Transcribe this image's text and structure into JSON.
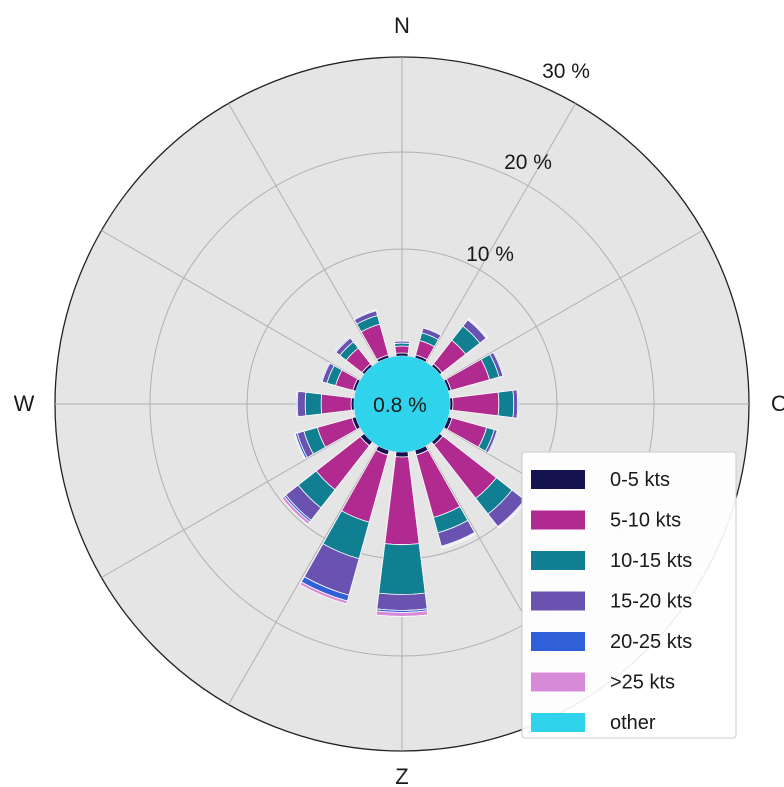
{
  "chart_data": {
    "type": "windrose",
    "direction_labels": [
      "N",
      "O",
      "Z",
      "W"
    ],
    "radial_ticks": [
      10,
      20,
      30
    ],
    "radial_tick_labels": [
      "10 %",
      "20 %",
      "30 %"
    ],
    "rmax": 30,
    "calm_label": "0.8 %",
    "colors": {
      "0-5 kts": "#14124f",
      "5-10 kts": "#b02a8f",
      "10-15 kts": "#0f7f91",
      "15-20 kts": "#6a52b0",
      "20-25 kts": "#2f5fd9",
      ">25 kts": "#d68ad8",
      "other": "#2fd3ec",
      "background": "#e5e5e5",
      "grid": "#b0b0b0"
    },
    "legend": [
      "0-5 kts",
      "5-10 kts",
      "10-15 kts",
      "15-20 kts",
      "20-25 kts",
      ">25 kts",
      "other"
    ],
    "legend_position": "lower-right",
    "grid": true,
    "directions_deg": [
      0,
      22.5,
      45,
      67.5,
      90,
      112.5,
      135,
      157.5,
      180,
      202.5,
      225,
      247.5,
      270,
      292.5,
      315,
      337.5
    ],
    "series": [
      {
        "name": "0-5 kts",
        "values": [
          0.3,
          0.3,
          0.3,
          0.3,
          0.3,
          0.4,
          0.4,
          0.5,
          0.5,
          0.5,
          0.5,
          0.4,
          0.3,
          0.3,
          0.3,
          0.3
        ]
      },
      {
        "name": "5-10 kts",
        "values": [
          0.7,
          1.5,
          3.0,
          4.0,
          4.6,
          3.6,
          6.8,
          6.5,
          8.8,
          7.0,
          5.6,
          3.6,
          3.0,
          1.8,
          2.0,
          3.2
        ]
      },
      {
        "name": "10-15 kts",
        "values": [
          0.3,
          0.8,
          1.8,
          1.0,
          1.5,
          0.8,
          2.0,
          1.6,
          5.0,
          3.8,
          2.3,
          1.4,
          1.6,
          0.9,
          0.8,
          0.9
        ]
      },
      {
        "name": "15-20 kts",
        "values": [
          0.2,
          0.5,
          0.8,
          0.4,
          0.4,
          0.3,
          1.6,
          1.4,
          1.6,
          3.8,
          1.6,
          0.7,
          0.8,
          0.5,
          0.5,
          0.5
        ]
      },
      {
        "name": "20-25 kts",
        "values": [
          0.0,
          0.0,
          0.1,
          0.1,
          0.1,
          0.1,
          0.1,
          0.1,
          0.2,
          0.6,
          0.2,
          0.2,
          0.1,
          0.1,
          0.1,
          0.1
        ]
      },
      {
        "name": ">25 kts",
        "values": [
          0.0,
          0.0,
          0.1,
          0.0,
          0.0,
          0.0,
          0.1,
          0.1,
          0.4,
          0.3,
          0.3,
          0.1,
          0.0,
          0.0,
          0.0,
          0.0
        ]
      }
    ]
  }
}
